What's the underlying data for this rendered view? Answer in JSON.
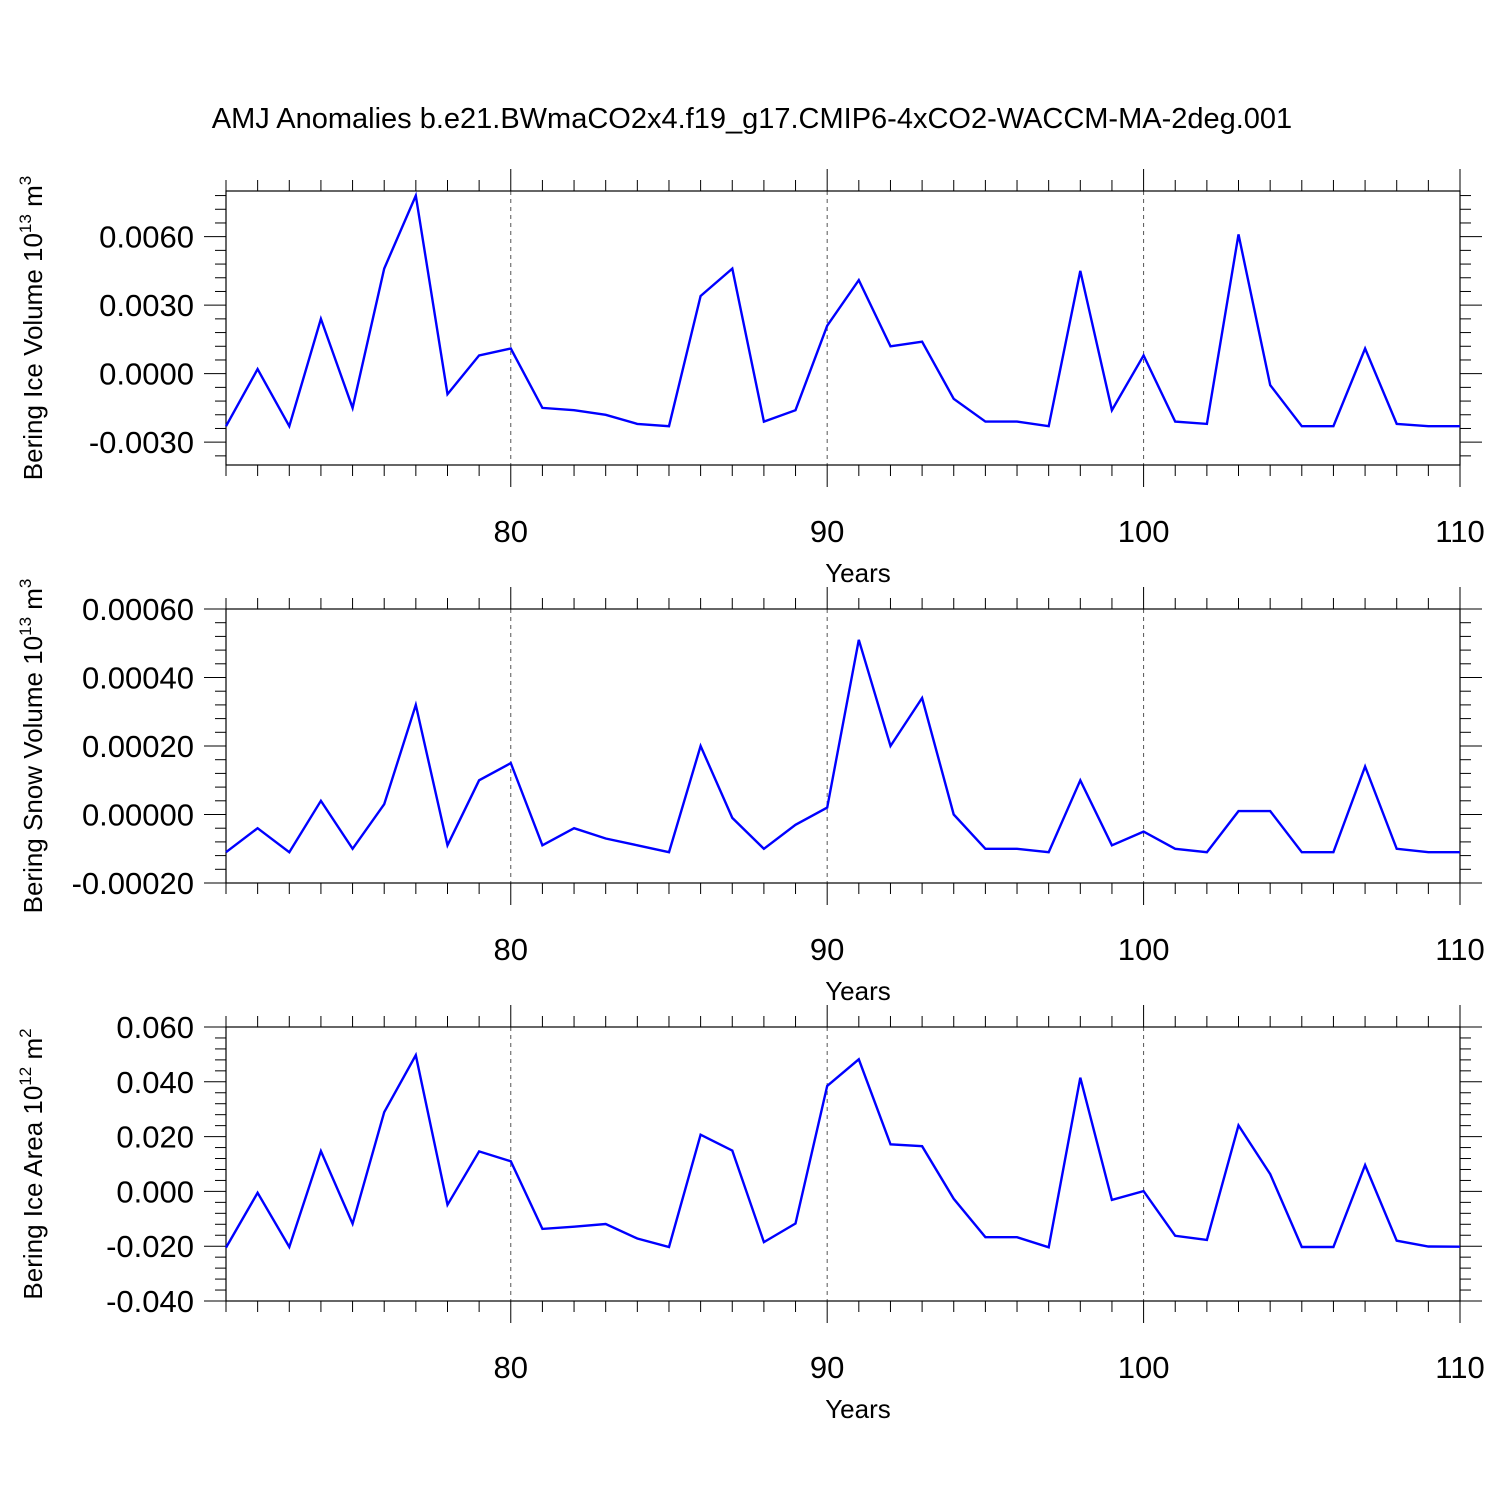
{
  "title": "AMJ Anomalies b.e21.BWmaCO2x4.f19_g17.CMIP6-4xCO2-WACCM-MA-2deg.001",
  "line_color": "#0000ff",
  "chart_data": [
    {
      "type": "line",
      "xlabel": "Years",
      "ylabel": {
        "text": "Bering Ice Volume 10",
        "sup": "13",
        "unit": " m",
        "unit_sup": "3"
      },
      "xlim": [
        71,
        110
      ],
      "ylim": [
        -0.004,
        0.008
      ],
      "xticks": [
        80,
        90,
        100,
        110
      ],
      "xtick_labels": [
        "80",
        "90",
        "100",
        "110"
      ],
      "yticks": [
        -0.003,
        0,
        0.003,
        0.006
      ],
      "ytick_labels": [
        "-0.0030",
        "0.0000",
        "0.0030",
        "0.0060"
      ],
      "grid": "vertical dashed at major x ticks",
      "series": [
        {
          "x": [
            71,
            72,
            73,
            74,
            75,
            76,
            77,
            78,
            79,
            80,
            81,
            82,
            83,
            84,
            85,
            86,
            87,
            88,
            89,
            90,
            91,
            92,
            93,
            94,
            95,
            96,
            97,
            98,
            99,
            100,
            101,
            102,
            103,
            104,
            105,
            106,
            107,
            108,
            109,
            110
          ],
          "values": [
            -0.0023,
            0.0002,
            -0.0023,
            0.0024,
            -0.0015,
            0.0046,
            0.0078,
            -0.0009,
            0.0008,
            0.0011,
            -0.0015,
            -0.0016,
            -0.0018,
            -0.0022,
            -0.0023,
            0.0034,
            0.0046,
            -0.0021,
            -0.0016,
            0.0021,
            0.0041,
            0.0012,
            0.0014,
            -0.0011,
            -0.0021,
            -0.0021,
            -0.0023,
            0.0045,
            -0.0016,
            0.0008,
            -0.0021,
            -0.0022,
            0.0061,
            -0.0005,
            -0.0023,
            -0.0023,
            0.0011,
            -0.0022,
            -0.0023,
            -0.0023
          ]
        }
      ]
    },
    {
      "type": "line",
      "xlabel": "Years",
      "ylabel": {
        "text": "Bering Snow Volume 10",
        "sup": "13",
        "unit": " m",
        "unit_sup": "3"
      },
      "xlim": [
        71,
        110
      ],
      "ylim": [
        -0.0002,
        0.0006
      ],
      "xticks": [
        80,
        90,
        100,
        110
      ],
      "xtick_labels": [
        "80",
        "90",
        "100",
        "110"
      ],
      "yticks": [
        -0.0002,
        0,
        0.0002,
        0.0004,
        0.0006
      ],
      "ytick_labels": [
        "-0.00020",
        "0.00000",
        "0.00020",
        "0.00040",
        "0.00060"
      ],
      "grid": "vertical dashed at major x ticks",
      "series": [
        {
          "x": [
            71,
            72,
            73,
            74,
            75,
            76,
            77,
            78,
            79,
            80,
            81,
            82,
            83,
            84,
            85,
            86,
            87,
            88,
            89,
            90,
            91,
            92,
            93,
            94,
            95,
            96,
            97,
            98,
            99,
            100,
            101,
            102,
            103,
            104,
            105,
            106,
            107,
            108,
            109,
            110
          ],
          "values": [
            -0.00011,
            -4e-05,
            -0.00011,
            4e-05,
            -0.0001,
            3e-05,
            0.00032,
            -9e-05,
            0.0001,
            0.00015,
            -9e-05,
            -4e-05,
            -7e-05,
            -9e-05,
            -0.00011,
            0.0002,
            -1e-05,
            -0.0001,
            -3e-05,
            2e-05,
            0.00051,
            0.0002,
            0.00034,
            0.0,
            -0.0001,
            -0.0001,
            -0.00011,
            0.0001,
            -9e-05,
            -5e-05,
            -0.0001,
            -0.00011,
            1e-05,
            1e-05,
            -0.00011,
            -0.00011,
            0.00014,
            -0.0001,
            -0.00011,
            -0.00011
          ]
        }
      ]
    },
    {
      "type": "line",
      "xlabel": "Years",
      "ylabel": {
        "text": "Bering Ice Area 10",
        "sup": "12",
        "unit": " m",
        "unit_sup": "2"
      },
      "xlim": [
        71,
        110
      ],
      "ylim": [
        -0.04,
        0.06
      ],
      "xticks": [
        80,
        90,
        100,
        110
      ],
      "xtick_labels": [
        "80",
        "90",
        "100",
        "110"
      ],
      "yticks": [
        -0.04,
        -0.02,
        0,
        0.02,
        0.04,
        0.06
      ],
      "ytick_labels": [
        "-0.040",
        "-0.020",
        "0.000",
        "0.020",
        "0.040",
        "0.060"
      ],
      "grid": "vertical dashed at major x ticks",
      "series": [
        {
          "x": [
            71,
            72,
            73,
            74,
            75,
            76,
            77,
            78,
            79,
            80,
            81,
            82,
            83,
            84,
            85,
            86,
            87,
            88,
            89,
            90,
            91,
            92,
            93,
            94,
            95,
            96,
            97,
            98,
            99,
            100,
            101,
            102,
            103,
            104,
            105,
            106,
            107,
            108,
            109,
            110
          ],
          "values": [
            -0.0205,
            -0.0005,
            -0.0203,
            0.0147,
            -0.0118,
            0.0289,
            0.0497,
            -0.0049,
            0.0146,
            0.011,
            -0.0137,
            -0.0129,
            -0.0119,
            -0.0172,
            -0.0203,
            0.0207,
            0.0149,
            -0.0185,
            -0.0117,
            0.0385,
            0.0482,
            0.0172,
            0.0165,
            -0.0027,
            -0.0167,
            -0.0167,
            -0.0204,
            0.0415,
            -0.0031,
            0.0001,
            -0.0162,
            -0.0177,
            0.0241,
            0.0063,
            -0.0203,
            -0.0203,
            0.0096,
            -0.018,
            -0.0201,
            -0.0202
          ]
        }
      ]
    }
  ]
}
